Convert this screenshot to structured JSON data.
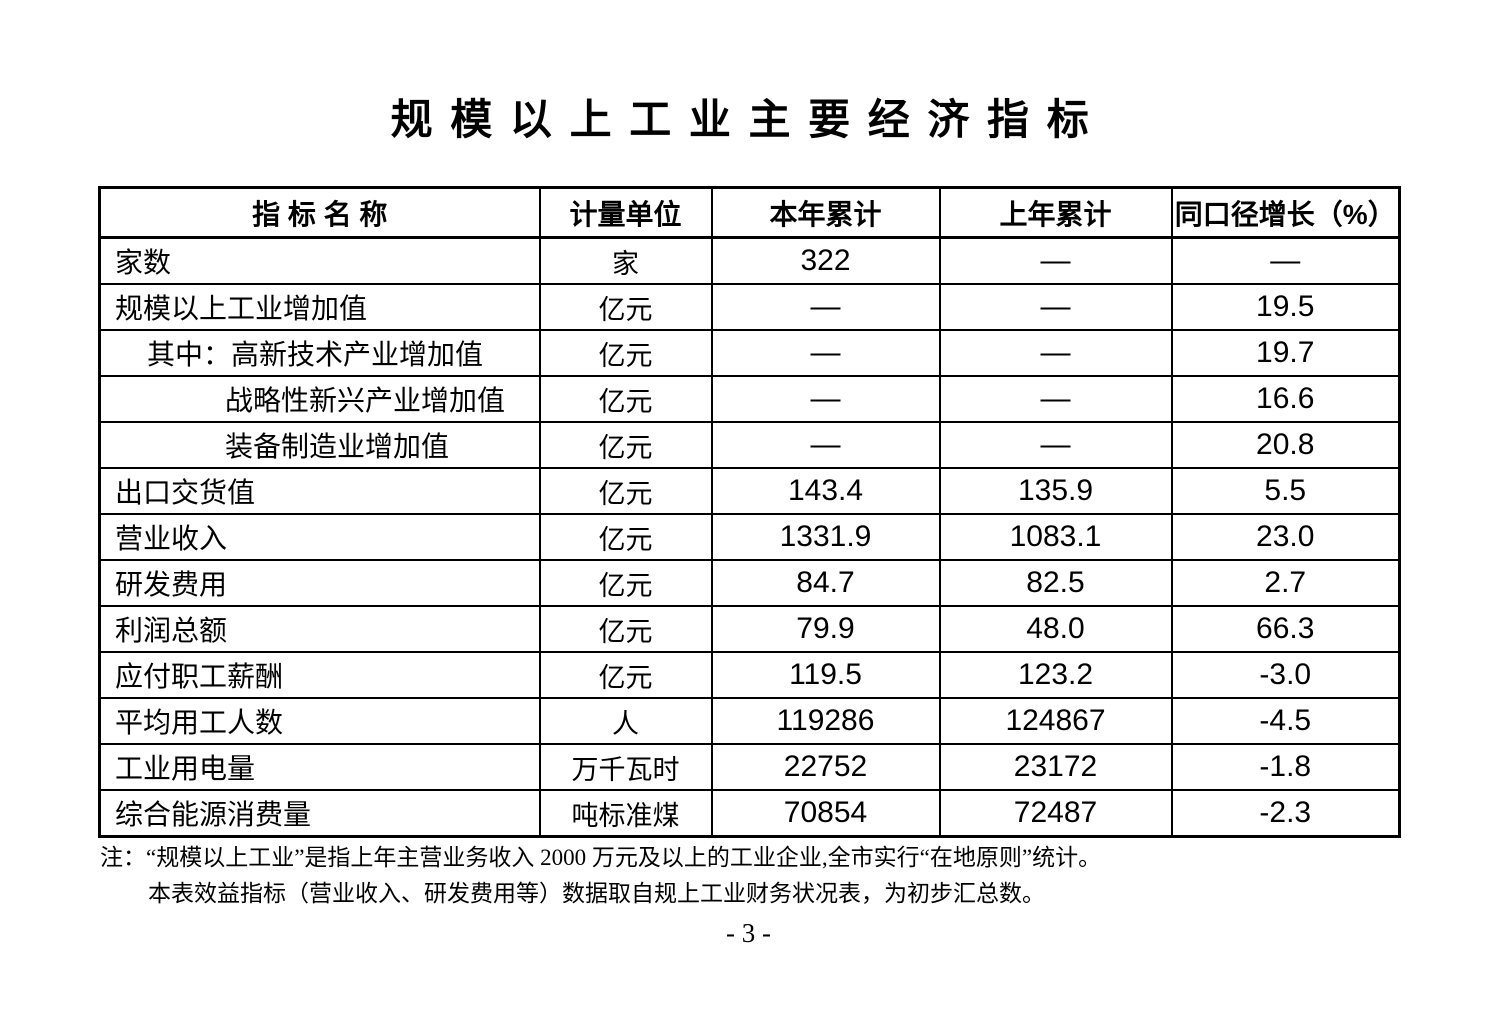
{
  "title": "规模以上工业主要经济指标",
  "table": {
    "headers": {
      "name": "指 标 名 称",
      "unit": "计量单位",
      "current_year": "本年累计",
      "previous_year": "上年累计",
      "growth": "同口径增长（%）"
    },
    "rows": [
      {
        "name": "家数",
        "unit": "家",
        "current": "322",
        "previous": "—",
        "growth": "—"
      },
      {
        "name": "规模以上工业增加值",
        "unit": "亿元",
        "current": "—",
        "previous": "—",
        "growth": "19.5"
      },
      {
        "name": "其中：高新技术产业增加值",
        "unit": "亿元",
        "current": "—",
        "previous": "—",
        "growth": "19.7"
      },
      {
        "name": "战略性新兴产业增加值",
        "unit": "亿元",
        "current": "—",
        "previous": "—",
        "growth": "16.6"
      },
      {
        "name": "装备制造业增加值",
        "unit": "亿元",
        "current": "—",
        "previous": "—",
        "growth": "20.8"
      },
      {
        "name": "出口交货值",
        "unit": "亿元",
        "current": "143.4",
        "previous": "135.9",
        "growth": "5.5"
      },
      {
        "name": "营业收入",
        "unit": "亿元",
        "current": "1331.9",
        "previous": "1083.1",
        "growth": "23.0"
      },
      {
        "name": "研发费用",
        "unit": "亿元",
        "current": "84.7",
        "previous": "82.5",
        "growth": "2.7"
      },
      {
        "name": "利润总额",
        "unit": "亿元",
        "current": "79.9",
        "previous": "48.0",
        "growth": "66.3"
      },
      {
        "name": "应付职工薪酬",
        "unit": "亿元",
        "current": "119.5",
        "previous": "123.2",
        "growth": "-3.0"
      },
      {
        "name": "平均用工人数",
        "unit": "人",
        "current": "119286",
        "previous": "124867",
        "growth": "-4.5"
      },
      {
        "name": "工业用电量",
        "unit": "万千瓦时",
        "current": "22752",
        "previous": "23172",
        "growth": "-1.8"
      },
      {
        "name": "综合能源消费量",
        "unit": "吨标准煤",
        "current": "70854",
        "previous": "72487",
        "growth": "-2.3"
      }
    ]
  },
  "notes": {
    "line1": "注：“规模以上工业”是指上年主营业务收入 2000 万元及以上的工业企业,全市实行“在地原则”统计。",
    "line2": "本表效益指标（营业收入、研发费用等）数据取自规上工业财务状况表，为初步汇总数。"
  },
  "page_number": "- 3 -"
}
